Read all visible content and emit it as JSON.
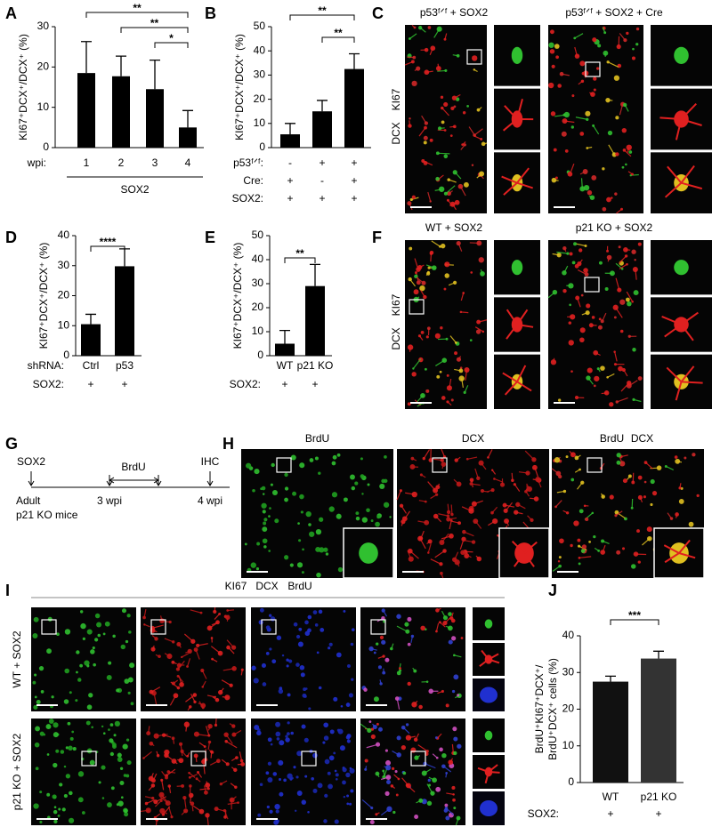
{
  "panel_labels": [
    "A",
    "B",
    "C",
    "D",
    "E",
    "F",
    "G",
    "H",
    "I",
    "J"
  ],
  "chart_data": [
    {
      "type": "bar",
      "ylabel": "KI67⁺DCX⁺/DCX⁺ (%)",
      "color": "#000000",
      "categories": [
        "1",
        "2",
        "3",
        "4"
      ],
      "category_label": "wpi:",
      "values": [
        18.5,
        17.7,
        14.5,
        5.0
      ],
      "errors": [
        7.8,
        5.0,
        7.2,
        4.2
      ],
      "ylim": [
        0,
        30
      ],
      "yticks": [
        0,
        10,
        20,
        30
      ],
      "conditions": [],
      "group_label": "SOX2",
      "significance": [
        {
          "between": [
            0,
            3
          ],
          "label": "**"
        },
        {
          "between": [
            1,
            3
          ],
          "label": "**"
        },
        {
          "between": [
            2,
            3
          ],
          "label": "*"
        }
      ]
    },
    {
      "type": "bar",
      "ylabel": "KI67⁺DCX⁺/DCX⁺ (%)",
      "color": "#000000",
      "categories": [
        null,
        null,
        null
      ],
      "category_label": null,
      "values": [
        5.5,
        15.0,
        32.5
      ],
      "errors": [
        4.5,
        4.5,
        6.3
      ],
      "ylim": [
        0,
        50
      ],
      "yticks": [
        0,
        10,
        20,
        30,
        40,
        50
      ],
      "conditions": [
        {
          "label": "p53ᶠᐟᶠ:",
          "values": [
            "-",
            "+",
            "+"
          ]
        },
        {
          "label": "Cre:",
          "values": [
            "+",
            "-",
            "+"
          ]
        },
        {
          "label": "SOX2:",
          "values": [
            "+",
            "+",
            "+"
          ]
        }
      ],
      "significance": [
        {
          "between": [
            0,
            2
          ],
          "label": "**"
        },
        {
          "between": [
            1,
            2
          ],
          "label": "**"
        }
      ]
    },
    {
      "type": "bar",
      "ylabel": "KI67⁺DCX⁺/DCX⁺ (%)",
      "color": "#000000",
      "categories": [
        "Ctrl",
        "p53"
      ],
      "category_label": "shRNA:",
      "values": [
        10.5,
        29.8
      ],
      "errors": [
        3.3,
        5.8
      ],
      "ylim": [
        0,
        40
      ],
      "yticks": [
        0,
        10,
        20,
        30,
        40
      ],
      "conditions": [
        {
          "label": "SOX2:",
          "values": [
            "+",
            "+"
          ]
        }
      ],
      "significance": [
        {
          "between": [
            0,
            1
          ],
          "label": "****"
        }
      ]
    },
    {
      "type": "bar",
      "ylabel": "KI67⁺DCX⁺/DCX⁺ (%)",
      "color": "#000000",
      "categories": [
        "WT",
        "p21 KO"
      ],
      "category_label": null,
      "values": [
        5.0,
        29.0
      ],
      "errors": [
        5.5,
        9.0
      ],
      "ylim": [
        0,
        50
      ],
      "yticks": [
        0,
        10,
        20,
        30,
        40,
        50
      ],
      "conditions": [
        {
          "label": "SOX2:",
          "values": [
            "+",
            "+"
          ]
        }
      ],
      "significance": [
        {
          "between": [
            0,
            1
          ],
          "label": "**"
        }
      ]
    },
    {
      "type": "bar",
      "ylabel": [
        "BrdU⁺KI67⁺DCX⁺/",
        "BrdU⁺DCX⁺ cells (%)"
      ],
      "colors": [
        "#111111",
        "#333333"
      ],
      "categories": [
        "WT",
        "p21 KO"
      ],
      "category_label": null,
      "values": [
        27.5,
        33.8
      ],
      "errors": [
        1.5,
        2.0
      ],
      "ylim": [
        0,
        40
      ],
      "yticks": [
        0,
        10,
        20,
        30,
        40
      ],
      "conditions": [
        {
          "label": "SOX2:",
          "values": [
            "+",
            "+"
          ]
        }
      ],
      "significance": [
        {
          "between": [
            0,
            1
          ],
          "label": "***"
        }
      ]
    }
  ],
  "images": {
    "C": {
      "titles": [
        "p53ᶠᐟᶠ + SOX2",
        "p53ᶠᐟᶠ + SOX2 + Cre"
      ],
      "stains": [
        "DCX",
        "KI67"
      ]
    },
    "F": {
      "titles": [
        "WT + SOX2",
        "p21 KO + SOX2"
      ],
      "stains": [
        "DCX",
        "KI67"
      ]
    },
    "H": {
      "stains": [
        "BrdU",
        "DCX"
      ]
    },
    "I": {
      "stains": [
        "KI67",
        "DCX",
        "BrdU"
      ],
      "rows": [
        "WT + SOX2",
        "p21 KO + SOX2"
      ]
    }
  },
  "timeline": {
    "start": "SOX2",
    "start_text": [
      "Adult",
      "p21 KO mice"
    ],
    "treatment": "BrdU",
    "times": [
      "3 wpi",
      "4 wpi"
    ],
    "end": "IHC"
  }
}
